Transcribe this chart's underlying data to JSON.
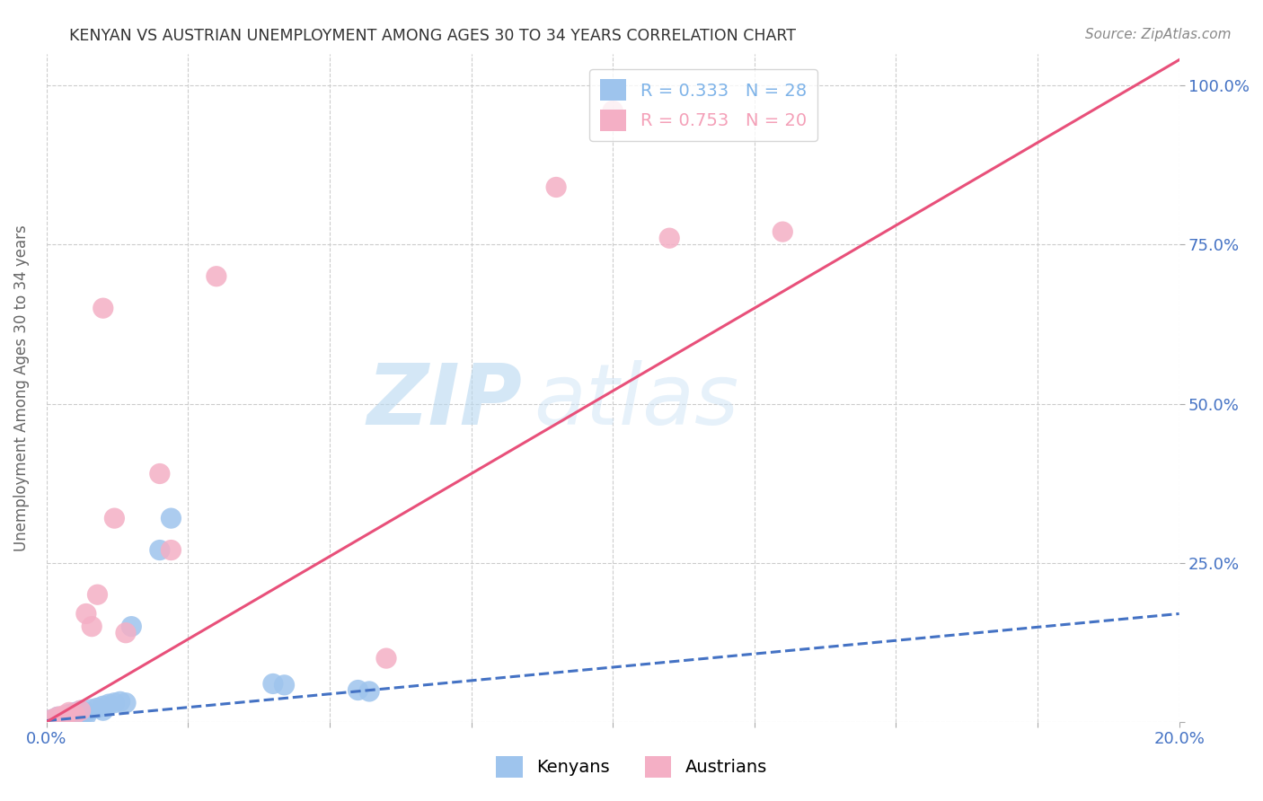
{
  "title": "KENYAN VS AUSTRIAN UNEMPLOYMENT AMONG AGES 30 TO 34 YEARS CORRELATION CHART",
  "source": "Source: ZipAtlas.com",
  "ylabel": "Unemployment Among Ages 30 to 34 years",
  "xmin": 0.0,
  "xmax": 0.2,
  "ymin": 0.0,
  "ymax": 1.05,
  "x_ticks": [
    0.0,
    0.025,
    0.05,
    0.075,
    0.1,
    0.125,
    0.15,
    0.175,
    0.2
  ],
  "x_tick_labels": [
    "0.0%",
    "",
    "",
    "",
    "",
    "",
    "",
    "",
    "20.0%"
  ],
  "y_ticks": [
    0.0,
    0.25,
    0.5,
    0.75,
    1.0
  ],
  "y_tick_labels": [
    "",
    "25.0%",
    "50.0%",
    "75.0%",
    "100.0%"
  ],
  "legend_entries": [
    {
      "label": "R = 0.333   N = 28",
      "color": "#7eb3e8"
    },
    {
      "label": "R = 0.753   N = 20",
      "color": "#f4a0b8"
    }
  ],
  "legend_labels_bottom": [
    "Kenyans",
    "Austrians"
  ],
  "kenyan_color": "#9ec4ed",
  "austrian_color": "#f4afc5",
  "kenyan_line_color": "#4472c4",
  "austrian_line_color": "#e8507a",
  "watermark_zip": "ZIP",
  "watermark_atlas": "atlas",
  "kenyan_points": [
    [
      0.001,
      0.004
    ],
    [
      0.002,
      0.005
    ],
    [
      0.002,
      0.008
    ],
    [
      0.003,
      0.003
    ],
    [
      0.003,
      0.006
    ],
    [
      0.004,
      0.01
    ],
    [
      0.004,
      0.012
    ],
    [
      0.005,
      0.008
    ],
    [
      0.005,
      0.015
    ],
    [
      0.006,
      0.012
    ],
    [
      0.006,
      0.018
    ],
    [
      0.007,
      0.01
    ],
    [
      0.007,
      0.015
    ],
    [
      0.008,
      0.02
    ],
    [
      0.009,
      0.022
    ],
    [
      0.01,
      0.018
    ],
    [
      0.01,
      0.025
    ],
    [
      0.011,
      0.028
    ],
    [
      0.012,
      0.03
    ],
    [
      0.013,
      0.032
    ],
    [
      0.014,
      0.03
    ],
    [
      0.015,
      0.15
    ],
    [
      0.02,
      0.27
    ],
    [
      0.022,
      0.32
    ],
    [
      0.04,
      0.06
    ],
    [
      0.042,
      0.058
    ],
    [
      0.055,
      0.05
    ],
    [
      0.057,
      0.048
    ]
  ],
  "austrian_points": [
    [
      0.001,
      0.004
    ],
    [
      0.002,
      0.008
    ],
    [
      0.003,
      0.01
    ],
    [
      0.004,
      0.015
    ],
    [
      0.005,
      0.012
    ],
    [
      0.006,
      0.018
    ],
    [
      0.007,
      0.17
    ],
    [
      0.008,
      0.15
    ],
    [
      0.009,
      0.2
    ],
    [
      0.01,
      0.65
    ],
    [
      0.012,
      0.32
    ],
    [
      0.014,
      0.14
    ],
    [
      0.02,
      0.39
    ],
    [
      0.022,
      0.27
    ],
    [
      0.03,
      0.7
    ],
    [
      0.06,
      0.1
    ],
    [
      0.09,
      0.84
    ],
    [
      0.1,
      0.96
    ],
    [
      0.11,
      0.76
    ],
    [
      0.13,
      0.77
    ]
  ],
  "kenyan_trend_x": [
    0.0,
    0.2
  ],
  "kenyan_trend_y": [
    0.002,
    0.17
  ],
  "austrian_trend_x": [
    0.0,
    0.2
  ],
  "austrian_trend_y": [
    0.0,
    1.04
  ],
  "background_color": "#ffffff",
  "grid_color": "#cccccc",
  "title_color": "#333333",
  "axis_label_color": "#666666",
  "tick_label_color": "#4472c4"
}
